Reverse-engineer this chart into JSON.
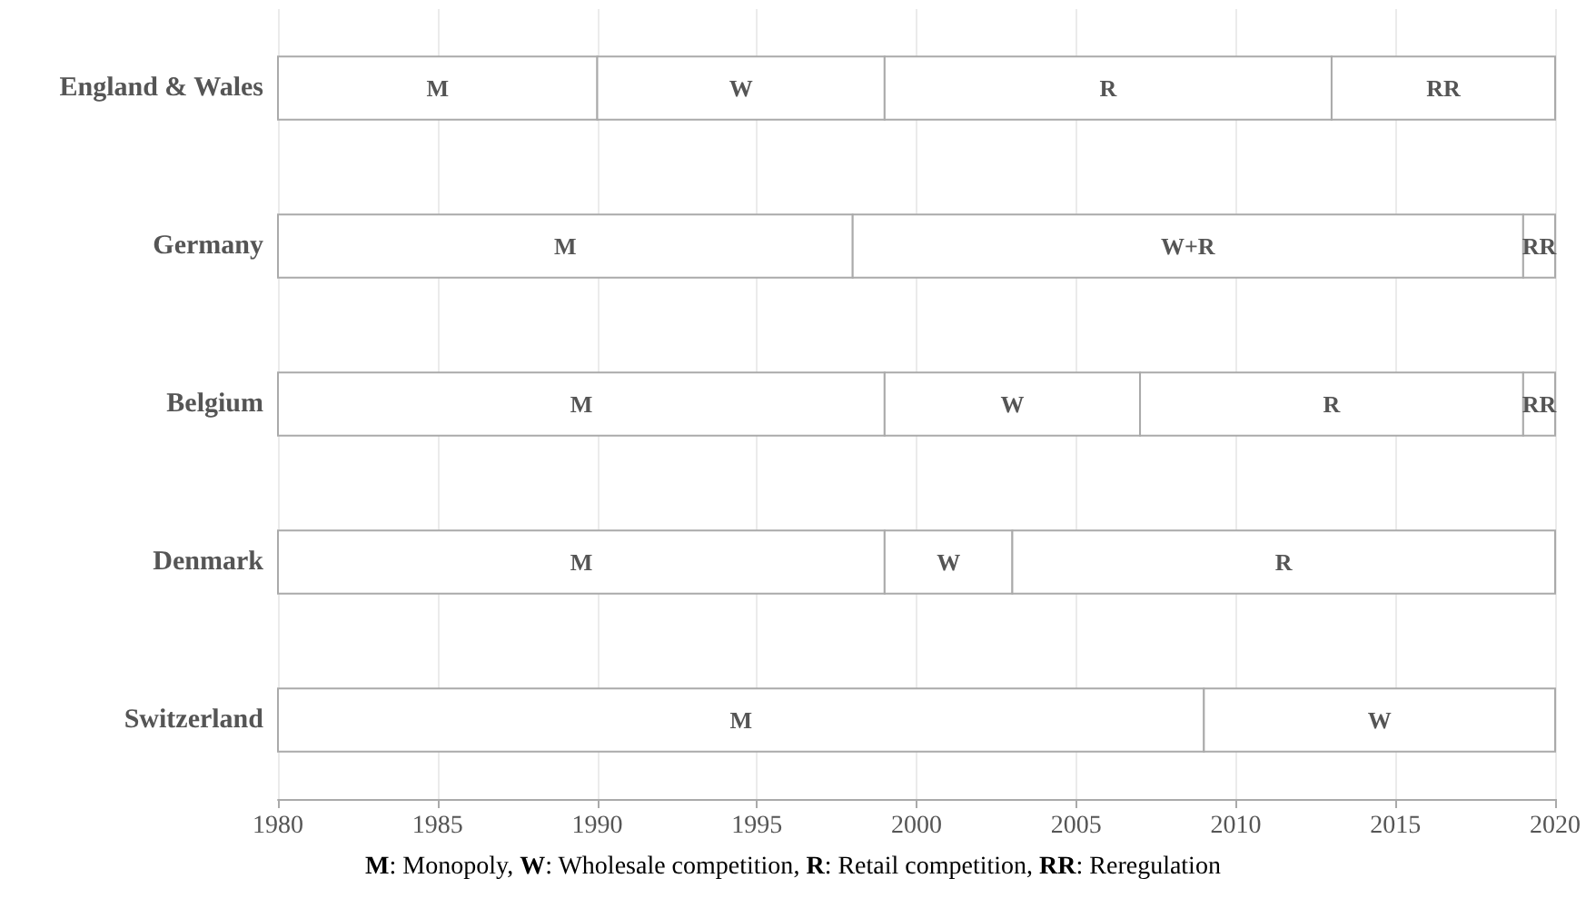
{
  "chart_data": {
    "type": "bar",
    "orientation": "horizontal",
    "categories": [
      "England & Wales",
      "Germany",
      "Belgium",
      "Denmark",
      "Switzerland"
    ],
    "series": [
      {
        "color": "#ffffff",
        "base": [
          1980,
          1980,
          1980,
          1980,
          1980
        ],
        "values": [
          10,
          18,
          19,
          19,
          29
        ],
        "value_labels": [
          "M",
          "M",
          "M",
          "M",
          "M"
        ]
      },
      {
        "color": "#ffffff",
        "base": [
          1990,
          1998,
          1999,
          1999,
          2009
        ],
        "values": [
          9,
          21,
          8,
          4,
          11
        ],
        "value_labels": [
          "W",
          "W+R",
          "W",
          "W",
          "W"
        ]
      },
      {
        "color": "#ffffff",
        "base": [
          1999,
          2019,
          2007,
          2003,
          null
        ],
        "values": [
          14,
          1,
          12,
          17,
          null
        ],
        "value_labels": [
          "R",
          "RR",
          "R",
          "R",
          null
        ]
      },
      {
        "color": "#ffffff",
        "base": [
          2013,
          null,
          2019,
          null,
          null
        ],
        "values": [
          7,
          null,
          1,
          null,
          null
        ],
        "value_labels": [
          "RR",
          null,
          "RR",
          null,
          null
        ]
      }
    ],
    "xlim": [
      1980,
      2020
    ],
    "xticks": [
      1980,
      1985,
      1990,
      1995,
      2000,
      2005,
      2010,
      2015,
      2020
    ],
    "grid": "x",
    "annotations": [
      "M: Monopoly, W: Wholesale competition, R: Retail competition, RR: Reregulation"
    ]
  }
}
